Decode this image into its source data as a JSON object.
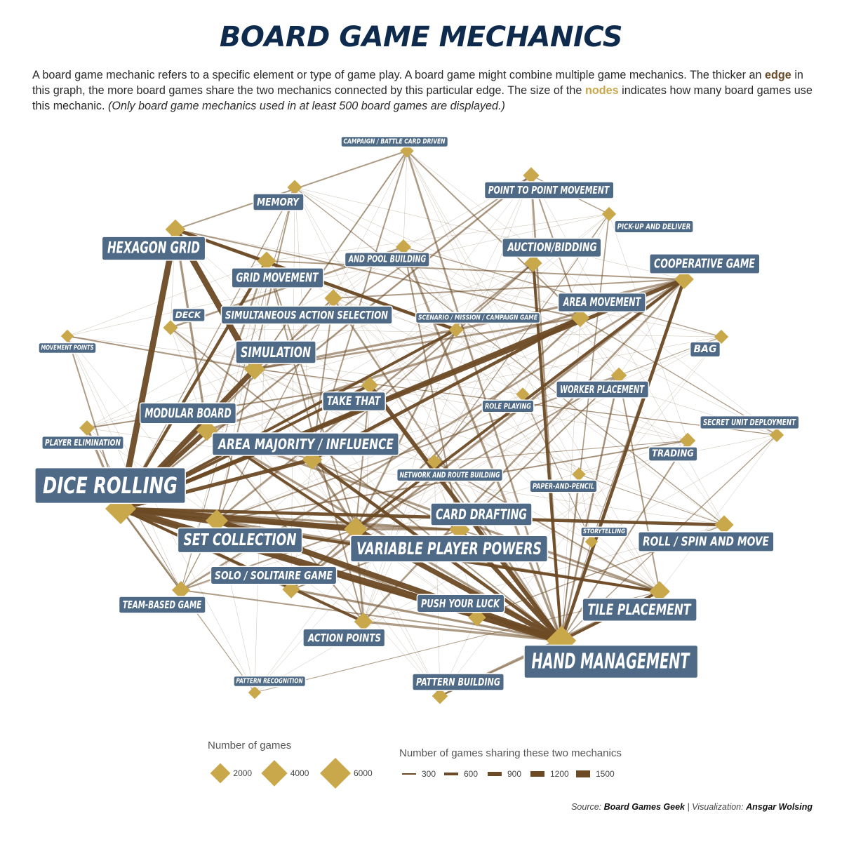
{
  "title": "BOARD GAME MECHANICS",
  "subtitle": {
    "part1": "A board game mechanic refers to a specific element or type of game play. A board game might combine multiple game mechanics. The thicker an ",
    "edge_word": "edge",
    "part2": " in this graph, the more board games share the two mechanics connected by this particular edge. The size of the ",
    "nodes_word": "nodes",
    "part3": " indicates how many board games use this mechanic. ",
    "note": "(Only board game mechanics used in at least 500 board games are displayed.)"
  },
  "colors": {
    "node": "#c9a84c",
    "edge": "#6b4a25",
    "label_bg": "#4e6a86",
    "title": "#0e2a4d"
  },
  "nodes": [
    {
      "id": "campaign",
      "label": "CAMPAIGN / BATTLE CARD DRIVEN",
      "games": 600
    },
    {
      "id": "p2p",
      "label": "POINT TO POINT MOVEMENT",
      "games": 1100
    },
    {
      "id": "memory",
      "label": "MEMORY",
      "games": 800
    },
    {
      "id": "pickup",
      "label": "PICK-UP AND DELIVER",
      "games": 700
    },
    {
      "id": "hexgrid",
      "label": "HEXAGON GRID",
      "games": 2000
    },
    {
      "id": "poolbuild",
      "label": "AND POOL BUILDING",
      "games": 900
    },
    {
      "id": "auction",
      "label": "AUCTION/BIDDING",
      "games": 1400
    },
    {
      "id": "coop",
      "label": "COOPERATIVE GAME",
      "games": 1800
    },
    {
      "id": "gridmove",
      "label": "GRID MOVEMENT",
      "games": 1700
    },
    {
      "id": "deck",
      "label": "DECK",
      "games": 800
    },
    {
      "id": "simaction",
      "label": "SIMULTANEOUS ACTION SELECTION",
      "games": 1400
    },
    {
      "id": "scenario",
      "label": "SCENARIO / MISSION / CAMPAIGN GAME",
      "games": 800
    },
    {
      "id": "areamove",
      "label": "AREA MOVEMENT",
      "games": 1600
    },
    {
      "id": "movepoints",
      "label": "MOVEMENT POINTS",
      "games": 500
    },
    {
      "id": "bag",
      "label": "BAG",
      "games": 700
    },
    {
      "id": "simulation",
      "label": "SIMULATION",
      "games": 2300
    },
    {
      "id": "takethat",
      "label": "TAKE THAT",
      "games": 1200
    },
    {
      "id": "worker",
      "label": "WORKER PLACEMENT",
      "games": 1000
    },
    {
      "id": "roleplay",
      "label": "ROLE PLAYING",
      "games": 600
    },
    {
      "id": "modular",
      "label": "MODULAR BOARD",
      "games": 2400
    },
    {
      "id": "secretunit",
      "label": "SECRET UNIT DEPLOYMENT",
      "games": 700
    },
    {
      "id": "elimination",
      "label": "PLAYER ELIMINATION",
      "games": 900
    },
    {
      "id": "majority",
      "label": "AREA MAJORITY / INFLUENCE",
      "games": 2000
    },
    {
      "id": "trading",
      "label": "TRADING",
      "games": 1000
    },
    {
      "id": "network",
      "label": "NETWORK AND ROUTE BUILDING",
      "games": 800
    },
    {
      "id": "paper",
      "label": "PAPER-AND-PENCIL",
      "games": 600
    },
    {
      "id": "dice",
      "label": "DICE ROLLING",
      "games": 6000
    },
    {
      "id": "drafting",
      "label": "CARD DRAFTING",
      "games": 2100
    },
    {
      "id": "setcoll",
      "label": "SET COLLECTION",
      "games": 2700
    },
    {
      "id": "vpp",
      "label": "VARIABLE PLAYER POWERS",
      "games": 3000
    },
    {
      "id": "storytelling",
      "label": "STORYTELLING",
      "games": 500
    },
    {
      "id": "roll",
      "label": "ROLL / SPIN AND MOVE",
      "games": 1700
    },
    {
      "id": "solo",
      "label": "SOLO / SOLITAIRE GAME",
      "games": 1400
    },
    {
      "id": "team",
      "label": "TEAM-BASED GAME",
      "games": 1500
    },
    {
      "id": "push",
      "label": "PUSH YOUR LUCK",
      "games": 1400
    },
    {
      "id": "tile",
      "label": "TILE PLACEMENT",
      "games": 2200
    },
    {
      "id": "actionpts",
      "label": "ACTION POINTS",
      "games": 1600
    },
    {
      "id": "hand",
      "label": "HAND MANAGEMENT",
      "games": 5500
    },
    {
      "id": "patternrec",
      "label": "PATTERN RECOGNITION",
      "games": 500
    },
    {
      "id": "patternbuild",
      "label": "PATTERN BUILDING",
      "games": 1000
    }
  ],
  "edges": [
    [
      "dice",
      "hand",
      1500
    ],
    [
      "dice",
      "hexgrid",
      1300
    ],
    [
      "dice",
      "simulation",
      1100
    ],
    [
      "dice",
      "modular",
      1000
    ],
    [
      "dice",
      "vpp",
      1200
    ],
    [
      "dice",
      "setcoll",
      700
    ],
    [
      "dice",
      "majority",
      800
    ],
    [
      "dice",
      "coop",
      800
    ],
    [
      "dice",
      "areamove",
      700
    ],
    [
      "dice",
      "gridmove",
      650
    ],
    [
      "dice",
      "takethat",
      600
    ],
    [
      "dice",
      "tile",
      600
    ],
    [
      "dice",
      "elimination",
      500
    ],
    [
      "dice",
      "roll",
      700
    ],
    [
      "dice",
      "push",
      500
    ],
    [
      "dice",
      "team",
      450
    ],
    [
      "dice",
      "actionpts",
      600
    ],
    [
      "dice",
      "scenario",
      600
    ],
    [
      "dice",
      "drafting",
      450
    ],
    [
      "dice",
      "solo",
      500
    ],
    [
      "dice",
      "p2p",
      400
    ],
    [
      "dice",
      "simaction",
      400
    ],
    [
      "dice",
      "movepoints",
      300
    ],
    [
      "dice",
      "memory",
      200
    ],
    [
      "hexgrid",
      "simulation",
      1300
    ],
    [
      "hexgrid",
      "scenario",
      700
    ],
    [
      "hexgrid",
      "gridmove",
      500
    ],
    [
      "hexgrid",
      "modular",
      500
    ],
    [
      "hexgrid",
      "campaign",
      300
    ],
    [
      "hexgrid",
      "areamove",
      300
    ],
    [
      "hand",
      "setcoll",
      1200
    ],
    [
      "hand",
      "vpp",
      1100
    ],
    [
      "hand",
      "drafting",
      900
    ],
    [
      "hand",
      "takethat",
      900
    ],
    [
      "hand",
      "tile",
      600
    ],
    [
      "hand",
      "majority",
      700
    ],
    [
      "hand",
      "coop",
      700
    ],
    [
      "hand",
      "push",
      500
    ],
    [
      "hand",
      "solo",
      500
    ],
    [
      "hand",
      "auction",
      600
    ],
    [
      "hand",
      "worker",
      400
    ],
    [
      "hand",
      "actionpts",
      500
    ],
    [
      "hand",
      "p2p",
      400
    ],
    [
      "hand",
      "poolbuild",
      500
    ],
    [
      "hand",
      "patternbuild",
      300
    ],
    [
      "hand",
      "team",
      300
    ],
    [
      "hand",
      "simaction",
      400
    ],
    [
      "hand",
      "trading",
      300
    ],
    [
      "hand",
      "modular",
      500
    ],
    [
      "hand",
      "campaign",
      400
    ],
    [
      "hand",
      "network",
      300
    ],
    [
      "hand",
      "pickup",
      250
    ],
    [
      "hand",
      "deck",
      300
    ],
    [
      "setcoll",
      "tile",
      500
    ],
    [
      "setcoll",
      "drafting",
      500
    ],
    [
      "setcoll",
      "vpp",
      400
    ],
    [
      "setcoll",
      "auction",
      400
    ],
    [
      "setcoll",
      "worker",
      300
    ],
    [
      "setcoll",
      "trading",
      300
    ],
    [
      "setcoll",
      "memory",
      300
    ],
    [
      "setcoll",
      "push",
      300
    ],
    [
      "vpp",
      "coop",
      600
    ],
    [
      "vpp",
      "modular",
      600
    ],
    [
      "vpp",
      "majority",
      500
    ],
    [
      "vpp",
      "areamove",
      400
    ],
    [
      "vpp",
      "drafting",
      400
    ],
    [
      "vpp",
      "actionpts",
      400
    ],
    [
      "vpp",
      "solo",
      400
    ],
    [
      "vpp",
      "worker",
      300
    ],
    [
      "vpp",
      "scenario",
      400
    ],
    [
      "vpp",
      "team",
      300
    ],
    [
      "vpp",
      "gridmove",
      300
    ],
    [
      "vpp",
      "takethat",
      300
    ],
    [
      "coop",
      "solo",
      500
    ],
    [
      "coop",
      "modular",
      500
    ],
    [
      "coop",
      "scenario",
      500
    ],
    [
      "coop",
      "actionpts",
      400
    ],
    [
      "coop",
      "team",
      400
    ],
    [
      "coop",
      "gridmove",
      300
    ],
    [
      "coop",
      "simaction",
      300
    ],
    [
      "coop",
      "storytelling",
      200
    ],
    [
      "majority",
      "areamove",
      700
    ],
    [
      "majority",
      "simaction",
      300
    ],
    [
      "majority",
      "drafting",
      300
    ],
    [
      "majority",
      "auction",
      300
    ],
    [
      "majority",
      "modular",
      300
    ],
    [
      "majority",
      "campaign",
      300
    ],
    [
      "modular",
      "tile",
      500
    ],
    [
      "modular",
      "gridmove",
      400
    ],
    [
      "modular",
      "actionpts",
      300
    ],
    [
      "simulation",
      "scenario",
      500
    ],
    [
      "simulation",
      "areamove",
      400
    ],
    [
      "simulation",
      "campaign",
      300
    ],
    [
      "simulation",
      "movepoints",
      300
    ],
    [
      "simulation",
      "p2p",
      300
    ],
    [
      "simulation",
      "secretunit",
      200
    ],
    [
      "tile",
      "worker",
      300
    ],
    [
      "tile",
      "network",
      300
    ],
    [
      "tile",
      "patternbuild",
      400
    ],
    [
      "tile",
      "drafting",
      300
    ],
    [
      "drafting",
      "worker",
      300
    ],
    [
      "drafting",
      "poolbuild",
      300
    ],
    [
      "drafting",
      "solo",
      300
    ],
    [
      "areamove",
      "p2p",
      300
    ],
    [
      "areamove",
      "campaign",
      300
    ],
    [
      "areamove",
      "secretunit",
      200
    ],
    [
      "takethat",
      "elimination",
      300
    ],
    [
      "push",
      "roll",
      200
    ],
    [
      "roll",
      "memory",
      200
    ],
    [
      "team",
      "simaction",
      200
    ],
    [
      "team",
      "memory",
      150
    ],
    [
      "patternrec",
      "tile",
      150
    ],
    [
      "patternrec",
      "dice",
      150
    ],
    [
      "bag",
      "poolbuild",
      200
    ],
    [
      "bag",
      "worker",
      150
    ],
    [
      "gridmove",
      "actionpts",
      300
    ],
    [
      "gridmove",
      "scenario",
      300
    ],
    [
      "deck",
      "poolbuild",
      400
    ],
    [
      "roleplay",
      "storytelling",
      150
    ],
    [
      "paper",
      "roll",
      150
    ],
    [
      "trading",
      "network",
      150
    ],
    [
      "pickup",
      "network",
      200
    ],
    [
      "pickup",
      "p2p",
      200
    ],
    [
      "elimination",
      "team",
      150
    ],
    [
      "secretunit",
      "hand",
      200
    ],
    [
      "storytelling",
      "hand",
      150
    ],
    [
      "paper",
      "hand",
      150
    ]
  ],
  "legend": {
    "size_title": "Number of games",
    "size_items": [
      {
        "label": "2000",
        "games": 2000
      },
      {
        "label": "4000",
        "games": 4000
      },
      {
        "label": "6000",
        "games": 6000
      }
    ],
    "edge_title": "Number of games sharing these two mechanics",
    "edge_items": [
      {
        "label": "300",
        "value": 300
      },
      {
        "label": "600",
        "value": 600
      },
      {
        "label": "900",
        "value": 900
      },
      {
        "label": "1200",
        "value": 1200
      },
      {
        "label": "1500",
        "value": 1500
      }
    ]
  },
  "source": {
    "prefix": "Source: ",
    "name": "Board Games Geek",
    "sep": " | Visualization: ",
    "author": "Ansgar Wolsing"
  }
}
